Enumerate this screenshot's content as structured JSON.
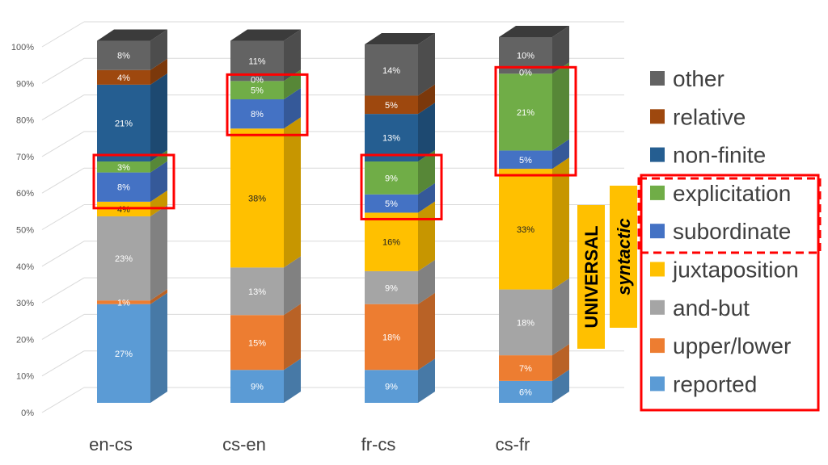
{
  "chart_data": {
    "type": "bar",
    "stacked": true,
    "style": "3d",
    "categories": [
      "en-cs",
      "cs-en",
      "fr-cs",
      "cs-fr"
    ],
    "y_ticks": [
      "0%",
      "10%",
      "20%",
      "30%",
      "40%",
      "50%",
      "60%",
      "70%",
      "80%",
      "90%",
      "100%"
    ],
    "ylim": [
      0,
      100
    ],
    "grid": true,
    "legend_position": "right",
    "series": [
      {
        "name": "reported",
        "color": "#5b9bd5",
        "values": [
          27,
          9,
          9,
          6
        ],
        "labels": [
          "27%",
          "9%",
          "9%",
          "6%"
        ]
      },
      {
        "name": "upper/lower",
        "color": "#ed7d31",
        "values": [
          1,
          15,
          18,
          7
        ],
        "labels": [
          "1%",
          "15%",
          "18%",
          "7%"
        ]
      },
      {
        "name": "and-but",
        "color": "#a5a5a5",
        "values": [
          23,
          13,
          9,
          18
        ],
        "labels": [
          "23%",
          "13%",
          "9%",
          "18%"
        ]
      },
      {
        "name": "juxtaposition",
        "color": "#ffc000",
        "values": [
          4,
          38,
          16,
          33
        ],
        "labels": [
          "4%",
          "38%",
          "16%",
          "33%"
        ]
      },
      {
        "name": "subordinate",
        "color": "#4472c4",
        "values": [
          8,
          8,
          5,
          5
        ],
        "labels": [
          "8%",
          "8%",
          "5%",
          "5%"
        ]
      },
      {
        "name": "explicitation",
        "color": "#70ad47",
        "values": [
          3,
          5,
          9,
          21
        ],
        "labels": [
          "3%",
          "5%",
          "9%",
          "21%"
        ]
      },
      {
        "name": "non-finite",
        "color": "#255e91",
        "values": [
          21,
          0,
          13,
          0
        ],
        "labels": [
          "21%",
          "",
          "13%",
          ""
        ]
      },
      {
        "name": "relative",
        "color": "#9e480e",
        "values": [
          4,
          0,
          5,
          0
        ],
        "labels": [
          "4%",
          "",
          "5%",
          ""
        ]
      },
      {
        "name": "other",
        "color": "#636363",
        "values": [
          8,
          11,
          14,
          10
        ],
        "labels": [
          "8%",
          "11%",
          "14%",
          "10%"
        ]
      }
    ],
    "extra_labels": [
      {
        "category": "cs-en",
        "text": "0%"
      },
      {
        "category": "cs-fr",
        "text": "0%"
      }
    ],
    "highlight_boxes": [
      {
        "category": "en-cs",
        "series": [
          "subordinate",
          "explicitation"
        ]
      },
      {
        "category": "cs-en",
        "series": [
          "subordinate",
          "explicitation"
        ]
      },
      {
        "category": "fr-cs",
        "series": [
          "subordinate",
          "explicitation"
        ]
      },
      {
        "category": "cs-fr",
        "series": [
          "subordinate",
          "explicitation"
        ]
      }
    ],
    "annotations": [
      {
        "text": "UNIVERSAL",
        "color": "#ffc000"
      },
      {
        "text": "syntactic",
        "color": "#ffc000"
      }
    ],
    "accent_color": "#ff0000"
  }
}
